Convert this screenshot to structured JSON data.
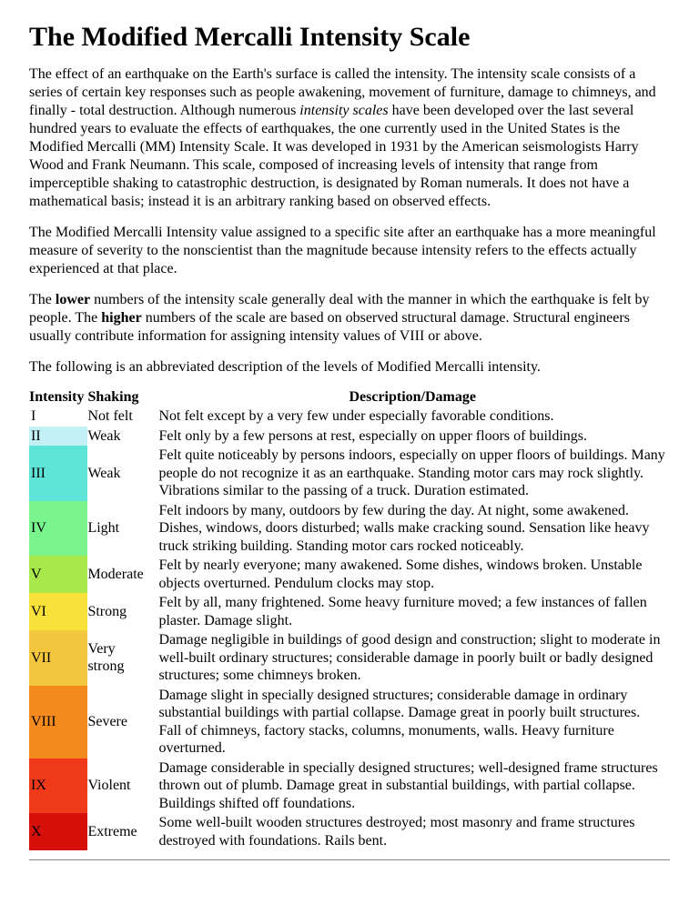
{
  "title": "The Modified Mercalli Intensity Scale",
  "paragraphs": {
    "p1a": "The effect of an earthquake on the Earth's surface is called the intensity. The intensity scale consists of a series of certain key responses such as people awakening, movement of furniture, damage to chimneys, and finally - total destruction. Although numerous ",
    "p1_italic": "intensity scales",
    "p1b": " have been developed over the last several hundred years to evaluate the effects of earthquakes, the one currently used in the United States is the Modified Mercalli (MM) Intensity Scale. It was developed in 1931 by the American seismologists Harry Wood and Frank Neumann. This scale, composed of increasing levels of intensity that range from imperceptible shaking to catastrophic destruction, is designated by Roman numerals. It does not have a mathematical basis; instead it is an arbitrary ranking based on observed effects.",
    "p2": "The Modified Mercalli Intensity value assigned to a specific site after an earthquake has a more meaningful measure of severity to the nonscientist than the magnitude because intensity refers to the effects actually experienced at that place.",
    "p3a": "The ",
    "p3_bold1": "lower",
    "p3b": " numbers of the intensity scale generally deal with the manner in which the earthquake is felt by people. The ",
    "p3_bold2": "higher",
    "p3c": " numbers of the scale are based on observed structural damage. Structural engineers usually contribute information for assigning intensity values of VIII or above.",
    "p4": "The following is an abbreviated description of the levels of Modified Mercalli intensity."
  },
  "table": {
    "headers": {
      "intensity": "Intensity",
      "shaking": "Shaking",
      "description": "Description/Damage"
    },
    "rows": [
      {
        "intensity": "I",
        "bg": "#ffffff",
        "shaking": "Not felt",
        "description": "Not felt except by a very few under especially favorable conditions."
      },
      {
        "intensity": "II",
        "bg": "#c3f0f5",
        "shaking": "Weak",
        "description": "Felt only by a few persons at rest, especially on upper floors of buildings."
      },
      {
        "intensity": "III",
        "bg": "#5ee5d8",
        "shaking": "Weak",
        "description": "Felt quite noticeably by persons indoors, especially on upper floors of buildings. Many people do not recognize it as an earthquake. Standing motor cars may rock slightly. Vibrations similar to the passing of a truck. Duration estimated."
      },
      {
        "intensity": "IV",
        "bg": "#7af58e",
        "shaking": "Light",
        "description": "Felt indoors by many, outdoors by few during the day. At night, some awakened. Dishes, windows, doors disturbed; walls make cracking sound. Sensation like heavy truck striking building. Standing motor cars rocked noticeably."
      },
      {
        "intensity": "V",
        "bg": "#a8e84a",
        "shaking": "Moderate",
        "description": "Felt by nearly everyone; many awakened. Some dishes, windows broken. Unstable objects overturned. Pendulum clocks may stop."
      },
      {
        "intensity": "VI",
        "bg": "#f8e23a",
        "shaking": "Strong",
        "description": "Felt by all, many frightened. Some heavy furniture moved; a few instances of fallen plaster. Damage slight."
      },
      {
        "intensity": "VII",
        "bg": "#f5c73e",
        "shaking": "Very strong",
        "description": "Damage negligible in buildings of good design and construction; slight to moderate in well-built ordinary structures; considerable damage in poorly built or badly designed structures; some chimneys broken."
      },
      {
        "intensity": "VIII",
        "bg": "#f58a1e",
        "shaking": "Severe",
        "description": "Damage slight in specially designed structures; considerable damage in ordinary substantial buildings with partial collapse. Damage great in poorly built structures. Fall of chimneys, factory stacks, columns, monuments, walls. Heavy furniture overturned."
      },
      {
        "intensity": "IX",
        "bg": "#ef3a1a",
        "shaking": "Violent",
        "description": "Damage considerable in specially designed structures; well-designed frame structures thrown out of plumb. Damage great in substantial buildings, with partial collapse. Buildings shifted off foundations."
      },
      {
        "intensity": "X",
        "bg": "#d6100a",
        "shaking": "Extreme",
        "description": "Some well-built wooden structures destroyed; most masonry and frame structures destroyed with foundations. Rails bent."
      }
    ]
  }
}
